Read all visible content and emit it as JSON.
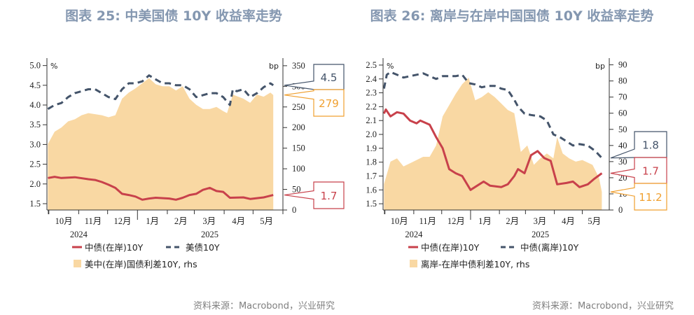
{
  "source_label": "资料来源：Macrobond，兴业研究",
  "colors": {
    "onshore": "#c8414b",
    "dashed": "#44546a",
    "spread": "#f9d8a3",
    "spread_label": "#f0a030",
    "title": "#8497b0"
  },
  "chart_data": [
    {
      "type": "line+area",
      "title": "图表 25: 中美国债 10Y 收益率走势",
      "left_unit": "%",
      "right_unit": "bp",
      "xlim": [
        "2024-09-29",
        "2025-06-01"
      ],
      "ylim_left": [
        1.34,
        5.1
      ],
      "ylim_right": [
        0,
        360
      ],
      "left_ticks": [
        "1.5",
        "2.0",
        "2.5",
        "3.0",
        "3.5",
        "4.0",
        "4.5",
        "5.0"
      ],
      "right_ticks": [
        "0",
        "50",
        "100",
        "150",
        "200",
        "250",
        "300",
        "350"
      ],
      "month_labels": [
        "10月",
        "11月",
        "12月",
        "1月",
        "2月",
        "3月",
        "4月",
        "5月"
      ],
      "year_labels": [
        "2024",
        "2025"
      ],
      "grid": false,
      "legend_placement": "bottom",
      "series": [
        {
          "name": "中债(在岸)10Y",
          "kind": "line",
          "axis": "left",
          "color_key": "onshore",
          "last_label": "1.7",
          "x": [
            "2024-09-30",
            "2024-10-07",
            "2024-10-14",
            "2024-10-28",
            "2024-11-11",
            "2024-11-18",
            "2024-11-25",
            "2024-12-02",
            "2024-12-09",
            "2024-12-16",
            "2024-12-23",
            "2024-12-30",
            "2025-01-06",
            "2025-01-13",
            "2025-01-20",
            "2025-02-03",
            "2025-02-10",
            "2025-02-17",
            "2025-02-24",
            "2025-03-03",
            "2025-03-10",
            "2025-03-17",
            "2025-03-24",
            "2025-03-31",
            "2025-04-07",
            "2025-04-21",
            "2025-04-28",
            "2025-05-12",
            "2025-05-22"
          ],
          "y": [
            2.15,
            2.18,
            2.15,
            2.17,
            2.12,
            2.1,
            2.05,
            1.98,
            1.9,
            1.75,
            1.72,
            1.68,
            1.6,
            1.63,
            1.65,
            1.63,
            1.6,
            1.65,
            1.72,
            1.75,
            1.85,
            1.9,
            1.82,
            1.8,
            1.65,
            1.66,
            1.62,
            1.66,
            1.72
          ]
        },
        {
          "name": "美债10Y",
          "kind": "dashed",
          "axis": "left",
          "color_key": "dashed",
          "last_label": "4.5",
          "x": [
            "2024-09-30",
            "2024-10-07",
            "2024-10-14",
            "2024-10-21",
            "2024-10-28",
            "2024-11-04",
            "2024-11-11",
            "2024-11-18",
            "2024-11-25",
            "2024-12-02",
            "2024-12-09",
            "2024-12-16",
            "2024-12-23",
            "2024-12-30",
            "2025-01-06",
            "2025-01-13",
            "2025-01-20",
            "2025-01-27",
            "2025-02-03",
            "2025-02-10",
            "2025-02-17",
            "2025-02-24",
            "2025-03-03",
            "2025-03-10",
            "2025-03-17",
            "2025-03-24",
            "2025-03-31",
            "2025-04-07",
            "2025-04-10",
            "2025-04-14",
            "2025-04-21",
            "2025-04-28",
            "2025-05-05",
            "2025-05-12",
            "2025-05-19",
            "2025-05-22"
          ],
          "y": [
            3.9,
            4.0,
            4.05,
            4.2,
            4.3,
            4.35,
            4.4,
            4.4,
            4.3,
            4.2,
            4.15,
            4.4,
            4.55,
            4.55,
            4.6,
            4.75,
            4.65,
            4.55,
            4.55,
            4.5,
            4.5,
            4.4,
            4.2,
            4.25,
            4.3,
            4.3,
            4.2,
            4.0,
            4.4,
            4.35,
            4.4,
            4.2,
            4.3,
            4.45,
            4.55,
            4.5
          ]
        },
        {
          "name": "美中(在岸)国债利差10Y, rhs",
          "kind": "area",
          "axis": "right",
          "color_key": "spread",
          "last_label": "279",
          "x": [
            "2024-09-30",
            "2024-10-07",
            "2024-10-14",
            "2024-10-21",
            "2024-10-28",
            "2024-11-04",
            "2024-11-11",
            "2024-11-25",
            "2024-12-02",
            "2024-12-09",
            "2024-12-16",
            "2024-12-23",
            "2024-12-30",
            "2025-01-13",
            "2025-01-20",
            "2025-01-27",
            "2025-02-03",
            "2025-02-10",
            "2025-02-17",
            "2025-02-24",
            "2025-03-03",
            "2025-03-10",
            "2025-03-17",
            "2025-03-24",
            "2025-03-31",
            "2025-04-04",
            "2025-04-10",
            "2025-04-21",
            "2025-04-28",
            "2025-05-05",
            "2025-05-12",
            "2025-05-19",
            "2025-05-22"
          ],
          "y": [
            160,
            190,
            200,
            215,
            220,
            230,
            235,
            230,
            225,
            230,
            270,
            285,
            295,
            320,
            305,
            300,
            300,
            290,
            300,
            270,
            255,
            245,
            245,
            250,
            240,
            235,
            280,
            270,
            260,
            280,
            275,
            285,
            279
          ]
        }
      ]
    },
    {
      "type": "line+area",
      "title": "图表 26: 离岸与在岸中国国债 10Y 收益率走势",
      "left_unit": "%",
      "right_unit": "bp",
      "xlim": [
        "2024-09-29",
        "2025-05-30"
      ],
      "ylim_left": [
        1.455,
        2.525
      ],
      "ylim_right": [
        0,
        92
      ],
      "left_ticks": [
        "1.5",
        "1.6",
        "1.7",
        "1.8",
        "1.9",
        "2.0",
        "2.1",
        "2.2",
        "2.3",
        "2.4",
        "2.5"
      ],
      "right_ticks": [
        "0",
        "10",
        "20",
        "30",
        "40",
        "50",
        "60",
        "70",
        "80",
        "90"
      ],
      "month_labels": [
        "10月",
        "11月",
        "12月",
        "1月",
        "2月",
        "3月",
        "4月",
        "5月"
      ],
      "year_labels": [
        "2024",
        "2025"
      ],
      "grid": false,
      "legend_placement": "bottom",
      "series": [
        {
          "name": "中债(在岸)10Y",
          "kind": "line",
          "axis": "left",
          "color_key": "onshore",
          "last_label": "1.7",
          "x": [
            "2024-09-30",
            "2024-10-02",
            "2024-10-07",
            "2024-10-14",
            "2024-10-21",
            "2024-10-28",
            "2024-11-04",
            "2024-11-08",
            "2024-11-18",
            "2024-11-25",
            "2024-12-02",
            "2024-12-09",
            "2024-12-16",
            "2024-12-23",
            "2025-01-01",
            "2025-01-08",
            "2025-01-15",
            "2025-01-22",
            "2025-02-03",
            "2025-02-10",
            "2025-02-17",
            "2025-02-21",
            "2025-02-28",
            "2025-03-07",
            "2025-03-14",
            "2025-03-21",
            "2025-03-28",
            "2025-04-04",
            "2025-04-14",
            "2025-04-21",
            "2025-04-28",
            "2025-05-07",
            "2025-05-14",
            "2025-05-22"
          ],
          "y": [
            2.15,
            2.18,
            2.13,
            2.16,
            2.15,
            2.1,
            2.08,
            2.1,
            2.07,
            1.98,
            1.9,
            1.75,
            1.72,
            1.7,
            1.6,
            1.63,
            1.66,
            1.63,
            1.62,
            1.64,
            1.7,
            1.75,
            1.72,
            1.85,
            1.88,
            1.83,
            1.81,
            1.64,
            1.65,
            1.66,
            1.62,
            1.64,
            1.68,
            1.72
          ]
        },
        {
          "name": "中债(离岸)10Y",
          "kind": "dashed",
          "axis": "left",
          "color_key": "dashed",
          "last_label": "1.8",
          "x": [
            "2024-09-30",
            "2024-10-03",
            "2024-10-07",
            "2024-10-14",
            "2024-10-21",
            "2024-10-28",
            "2024-11-04",
            "2024-11-11",
            "2024-11-18",
            "2024-11-25",
            "2024-12-02",
            "2024-12-16",
            "2024-12-23",
            "2024-12-30",
            "2025-01-06",
            "2025-01-13",
            "2025-01-20",
            "2025-01-27",
            "2025-02-03",
            "2025-02-10",
            "2025-02-17",
            "2025-02-21",
            "2025-02-28",
            "2025-03-07",
            "2025-03-17",
            "2025-03-24",
            "2025-03-31",
            "2025-04-07",
            "2025-04-14",
            "2025-04-21",
            "2025-04-28",
            "2025-05-07",
            "2025-05-15",
            "2025-05-22"
          ],
          "y": [
            2.33,
            2.43,
            2.45,
            2.43,
            2.41,
            2.42,
            2.43,
            2.44,
            2.42,
            2.4,
            2.42,
            2.42,
            2.43,
            2.37,
            2.36,
            2.34,
            2.35,
            2.35,
            2.33,
            2.32,
            2.25,
            2.2,
            2.15,
            2.14,
            2.13,
            2.1,
            2.0,
            1.98,
            1.95,
            1.92,
            1.93,
            1.92,
            1.88,
            1.83
          ]
        },
        {
          "name": "离岸-在岸中债利差10Y, rhs",
          "kind": "area",
          "axis": "right",
          "color_key": "spread",
          "last_label": "11.2",
          "x": [
            "2024-09-30",
            "2024-10-07",
            "2024-10-14",
            "2024-10-21",
            "2024-10-28",
            "2024-11-11",
            "2024-11-18",
            "2024-11-25",
            "2024-12-02",
            "2024-12-09",
            "2024-12-16",
            "2024-12-23",
            "2024-12-30",
            "2025-01-06",
            "2025-01-13",
            "2025-01-20",
            "2025-01-27",
            "2025-02-03",
            "2025-02-10",
            "2025-02-17",
            "2025-02-24",
            "2025-03-03",
            "2025-03-10",
            "2025-03-17",
            "2025-03-24",
            "2025-03-31",
            "2025-04-04",
            "2025-04-10",
            "2025-04-17",
            "2025-04-24",
            "2025-05-01",
            "2025-05-12",
            "2025-05-19",
            "2025-05-22"
          ],
          "y": [
            16,
            30,
            32,
            27,
            29,
            33,
            33,
            40,
            58,
            65,
            72,
            78,
            82,
            68,
            70,
            73,
            70,
            66,
            62,
            60,
            36,
            40,
            28,
            32,
            35,
            32,
            45,
            35,
            32,
            30,
            31,
            28,
            20,
            11.2
          ]
        }
      ]
    }
  ]
}
